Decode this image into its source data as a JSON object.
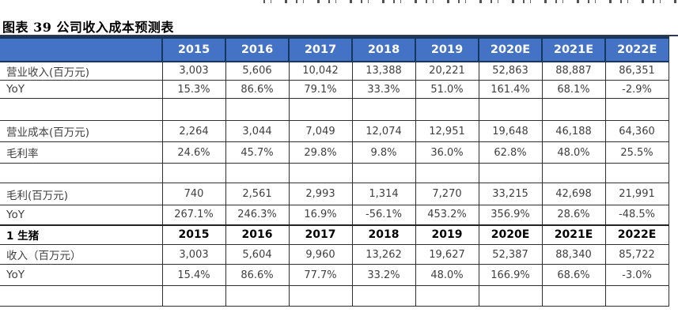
{
  "title": "图表 39 公司收入成本预测表",
  "table": {
    "header": {
      "label": "",
      "years": [
        "2015",
        "2016",
        "2017",
        "2018",
        "2019",
        "2020E",
        "2021E",
        "2022E"
      ]
    },
    "rows": [
      {
        "type": "data",
        "label": "营业收入(百万元)",
        "values": [
          "3,003",
          "5,606",
          "10,042",
          "13,388",
          "20,221",
          "52,863",
          "88,887",
          "86,351"
        ]
      },
      {
        "type": "data",
        "label": "YoY",
        "values": [
          "15.3%",
          "86.6%",
          "79.1%",
          "33.3%",
          "51.0%",
          "161.4%",
          "68.1%",
          "-2.9%"
        ]
      },
      {
        "type": "empty",
        "label": "",
        "values": [
          "",
          "",
          "",
          "",
          "",
          "",
          "",
          ""
        ]
      },
      {
        "type": "data",
        "label": "营业成本(百万元)",
        "values": [
          "2,264",
          "3,044",
          "7,049",
          "12,074",
          "12,951",
          "19,648",
          "46,188",
          "64,360"
        ]
      },
      {
        "type": "data",
        "label": "毛利率",
        "values": [
          "24.6%",
          "45.7%",
          "29.8%",
          "9.8%",
          "36.0%",
          "62.8%",
          "48.0%",
          "25.5%"
        ]
      },
      {
        "type": "empty",
        "label": "",
        "values": [
          "",
          "",
          "",
          "",
          "",
          "",
          "",
          ""
        ]
      },
      {
        "type": "data",
        "label": "毛利(百万元)",
        "values": [
          "740",
          "2,561",
          "2,993",
          "1,314",
          "7,270",
          "33,215",
          "42,698",
          "21,991"
        ]
      },
      {
        "type": "data",
        "label": "YoY",
        "values": [
          "267.1%",
          "246.3%",
          "16.9%",
          "-56.1%",
          "453.2%",
          "356.9%",
          "28.6%",
          "-48.5%"
        ]
      },
      {
        "type": "section",
        "label": "1 生猪",
        "values": [
          "2015",
          "2016",
          "2017",
          "2018",
          "2019",
          "2020E",
          "2021E",
          "2022E"
        ]
      },
      {
        "type": "data",
        "label": "收入（百万元）",
        "values": [
          "3,003",
          "5,604",
          "9,960",
          "13,262",
          "19,627",
          "52,387",
          "88,340",
          "85,722"
        ]
      },
      {
        "type": "data",
        "label": "YoY",
        "values": [
          "15.4%",
          "86.6%",
          "77.7%",
          "33.2%",
          "48.0%",
          "166.9%",
          "68.6%",
          "-3.0%"
        ]
      },
      {
        "type": "empty",
        "label": "",
        "values": [
          "",
          "",
          "",
          "",
          "",
          "",
          "",
          ""
        ]
      }
    ]
  },
  "colors": {
    "header_bg": "#4472C4",
    "header_text": "#FFFFFF",
    "header_border": "#17375E",
    "grid_line": "#2F2F2F",
    "body_text": "#3F3F3F"
  }
}
